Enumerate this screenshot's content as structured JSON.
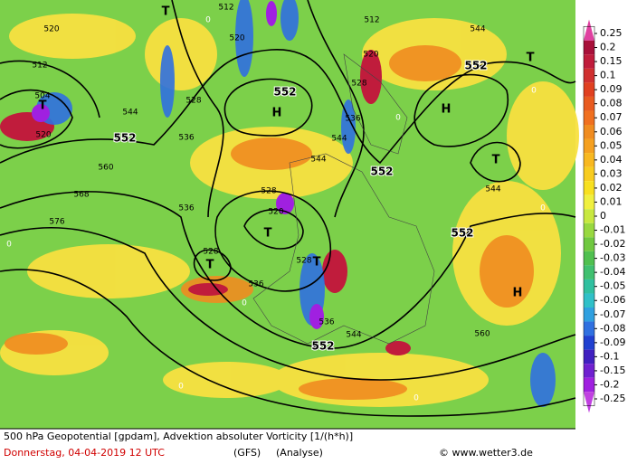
{
  "map_labels": [
    "552",
    "552",
    "552",
    "552",
    "552",
    "552",
    "H",
    "H",
    "H",
    "T",
    "T",
    "T",
    "T",
    "T",
    "T",
    "T",
    "512",
    "512",
    "512",
    "520",
    "520",
    "520",
    "520",
    "520",
    "528",
    "528",
    "528",
    "528",
    "528",
    "536",
    "536",
    "536",
    "536",
    "536",
    "544",
    "544",
    "544",
    "544",
    "544",
    "544",
    "560",
    "560",
    "568",
    "576",
    "504",
    "0",
    "0",
    "0",
    "0",
    "0",
    "0",
    "0",
    "0"
  ],
  "colorbar": {
    "ticks": [
      0.25,
      0.2,
      0.15,
      0.1,
      0.09,
      0.08,
      0.07,
      0.06,
      0.05,
      0.04,
      0.03,
      0.02,
      0.01,
      0,
      -0.01,
      -0.02,
      -0.03,
      -0.04,
      -0.05,
      -0.06,
      -0.07,
      -0.08,
      -0.09,
      -0.1,
      -0.15,
      -0.2,
      -0.25
    ],
    "colors": [
      "#e040a0",
      "#a8103a",
      "#c01c3c",
      "#d03030",
      "#e04020",
      "#e85a20",
      "#f07020",
      "#f08c20",
      "#f5a020",
      "#f8b820",
      "#f8cc20",
      "#f8e020",
      "#f0f040",
      "#c8e840",
      "#98d840",
      "#70c840",
      "#50c050",
      "#40c070",
      "#30c0a0",
      "#30c0c8",
      "#30a0e0",
      "#3070e0",
      "#2040d0",
      "#4020c0",
      "#7020d0",
      "#a020e0",
      "#c040e0"
    ]
  },
  "footer": {
    "line1": "500 hPa Geopotential [gpdam], Advektion absoluter Vorticity [1/(h*h)]",
    "date": "Donnerstag, 04-04-2019  12 UTC",
    "model": "(GFS)",
    "run": "(Analyse)",
    "copyright": "© www.wetter3.de"
  }
}
